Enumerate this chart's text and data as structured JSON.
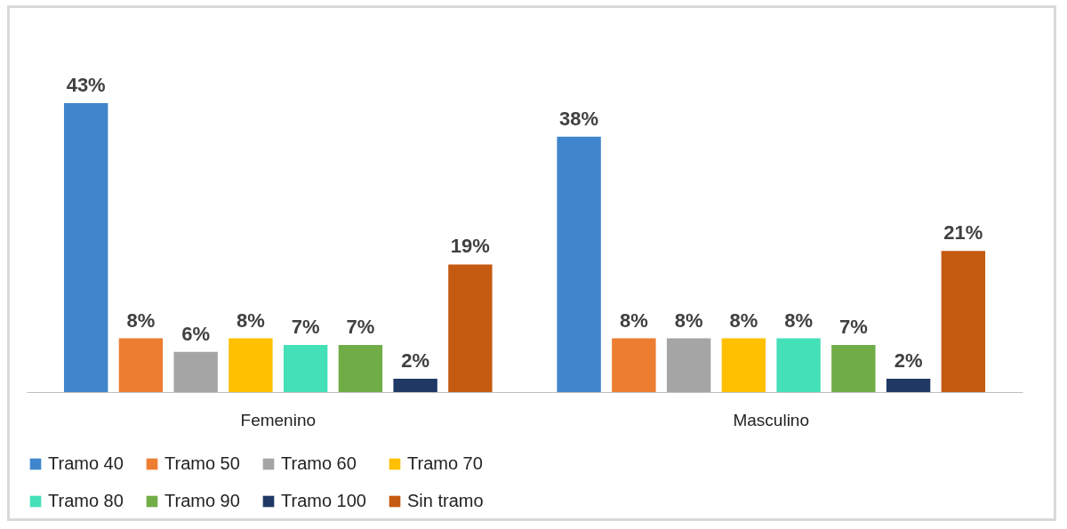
{
  "chart_data": {
    "type": "bar",
    "categories": [
      "Femenino",
      "Masculino"
    ],
    "series": [
      {
        "name": "Tramo 40",
        "color": "#3f86cc",
        "values": [
          43,
          38
        ],
        "value_labels": [
          "43%",
          "38%"
        ]
      },
      {
        "name": "Tramo 50",
        "color": "#ed7d31",
        "values": [
          8,
          8
        ],
        "value_labels": [
          "8%",
          "8%"
        ]
      },
      {
        "name": "Tramo 60",
        "color": "#a5a5a5",
        "values": [
          6,
          8
        ],
        "value_labels": [
          "6%",
          "8%"
        ]
      },
      {
        "name": "Tramo 70",
        "color": "#ffc000",
        "values": [
          8,
          8
        ],
        "value_labels": [
          "8%",
          "8%"
        ]
      },
      {
        "name": "Tramo 80",
        "color": "#44e0b8",
        "values": [
          7,
          8
        ],
        "value_labels": [
          "7%",
          "8%"
        ]
      },
      {
        "name": "Tramo 90",
        "color": "#70ad47",
        "values": [
          7,
          7
        ],
        "value_labels": [
          "7%",
          "7%"
        ]
      },
      {
        "name": "Tramo 100",
        "color": "#1f3864",
        "values": [
          2,
          2
        ],
        "value_labels": [
          "2%",
          "2%"
        ]
      },
      {
        "name": "Sin tramo",
        "color": "#c55a11",
        "values": [
          19,
          21
        ],
        "value_labels": [
          "19%",
          "21%"
        ]
      }
    ],
    "legend": "bottom"
  }
}
